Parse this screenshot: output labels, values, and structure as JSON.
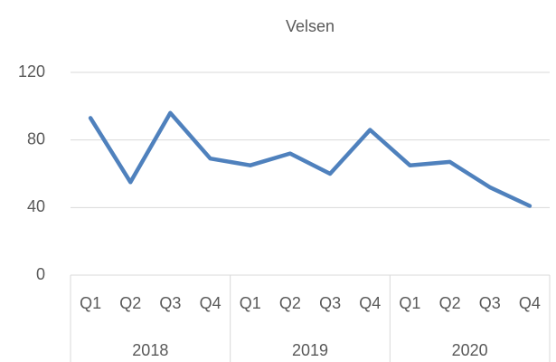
{
  "chart_data": {
    "type": "line",
    "title": "Velsen",
    "category_groups": [
      {
        "name": "2018",
        "categories": [
          "Q1",
          "Q2",
          "Q3",
          "Q4"
        ]
      },
      {
        "name": "2019",
        "categories": [
          "Q1",
          "Q2",
          "Q3",
          "Q4"
        ]
      },
      {
        "name": "2020",
        "categories": [
          "Q1",
          "Q2",
          "Q3",
          "Q4"
        ]
      }
    ],
    "values": [
      93,
      55,
      96,
      69,
      65,
      72,
      60,
      86,
      65,
      67,
      52,
      41
    ],
    "color": "#4f81bd",
    "ylim": [
      0,
      120
    ],
    "yticks": [
      0,
      40,
      80,
      120
    ],
    "grid": true
  }
}
